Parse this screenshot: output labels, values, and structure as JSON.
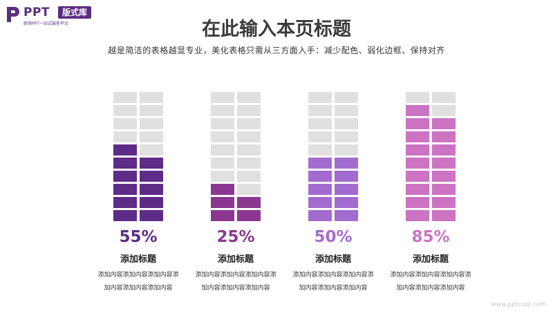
{
  "logo": {
    "name": "PPT",
    "badge": "版式库",
    "tagline": "职场PPT一站式服务平台"
  },
  "title": "在此输入本页标题",
  "subtitle": "越是简洁的表格越显专业，美化表格只需从三方面入手：减少配色、弱化边框、保持对齐",
  "empty_color": "#e0e0e0",
  "cards": [
    {
      "percent": "55%",
      "value": 55,
      "label": "添加标题",
      "desc_line1": "添加内容添加内容添加内容添",
      "desc_line2": "加内容添加内容添加内容",
      "color": "#5e2b87"
    },
    {
      "percent": "25%",
      "value": 25,
      "label": "添加标题",
      "desc_line1": "添加内容添加内容添加内容添",
      "desc_line2": "加内容添加内容添加内容",
      "color": "#8b3790"
    },
    {
      "percent": "50%",
      "value": 50,
      "label": "添加标题",
      "desc_line1": "添加内容添加内容添加内容添",
      "desc_line2": "加内容添加内容添加内容",
      "color": "#a36bd0"
    },
    {
      "percent": "85%",
      "value": 85,
      "label": "添加标题",
      "desc_line1": "添加内容添加内容添加内容添",
      "desc_line2": "加内容添加内容添加内容",
      "color": "#cc73c4"
    }
  ],
  "watermark": "www.pptcool.com"
}
